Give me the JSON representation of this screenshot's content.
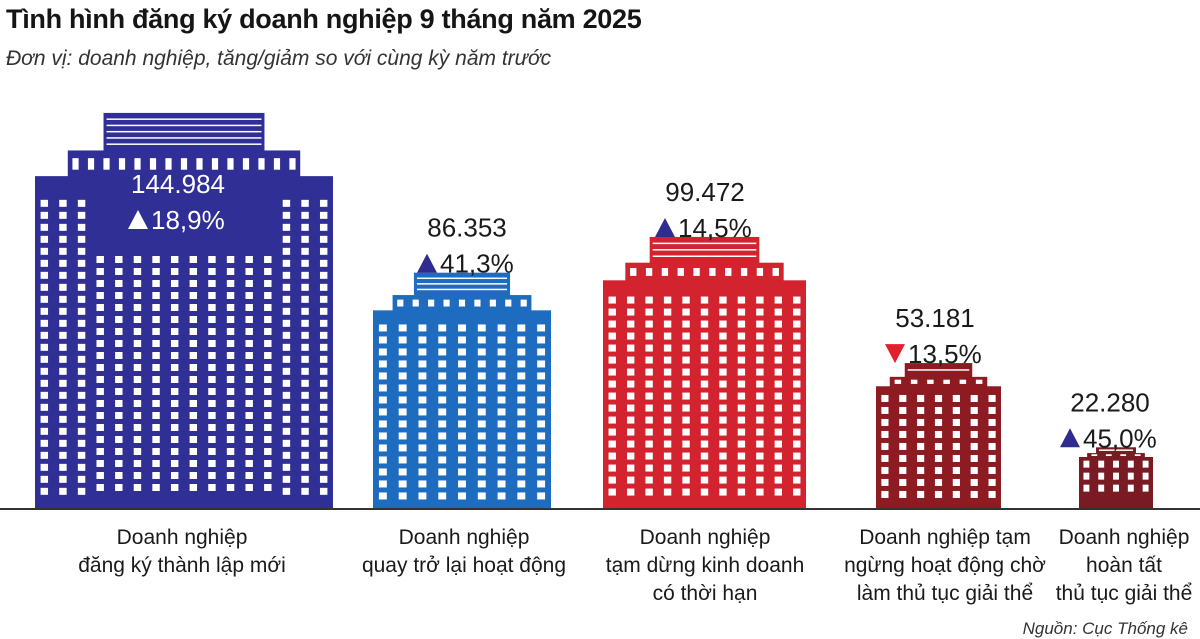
{
  "title": "Tình hình đăng ký doanh nghiệp 9 tháng năm 2025",
  "subtitle": "Đơn vị: doanh nghiệp, tăng/giảm so với cùng kỳ năm trước",
  "source": "Nguồn: Cục Thống kê",
  "colors": {
    "up_triangle": "#2e2d8f",
    "down_triangle": "#e0202c",
    "buildings": [
      "#2f2f96",
      "#1e6cc0",
      "#d2232f",
      "#8e1a22",
      "#7a1a22"
    ],
    "baseline": "#333333"
  },
  "chart_data": {
    "type": "bar",
    "title": "Tình hình đăng ký doanh nghiệp 9 tháng năm 2025",
    "subtitle": "Đơn vị: doanh nghiệp, tăng/giảm so với cùng kỳ năm trước",
    "categories": [
      "Doanh nghiệp\nđăng ký thành lập mới",
      "Doanh nghiệp\nquay trở lại hoạt động",
      "Doanh nghiệp\ntạm dừng kinh doanh\ncó thời hạn",
      "Doanh nghiệp tạm\nngừng hoạt động chờ\nlàm thủ tục giải thể",
      "Doanh nghiệp\nhoàn tất\nthủ tục giải thể"
    ],
    "values": [
      144984,
      86353,
      99472,
      53181,
      22280
    ],
    "value_labels": [
      "144.984",
      "86.353",
      "99.472",
      "53.181",
      "22.280"
    ],
    "change_labels": [
      "18,9%",
      "41,3%",
      "14,5%",
      "13,5%",
      "45,0%"
    ],
    "change_direction": [
      "up",
      "up",
      "up",
      "down",
      "up"
    ],
    "ylim": [
      0,
      160000
    ],
    "grid": false,
    "legend": "none"
  }
}
